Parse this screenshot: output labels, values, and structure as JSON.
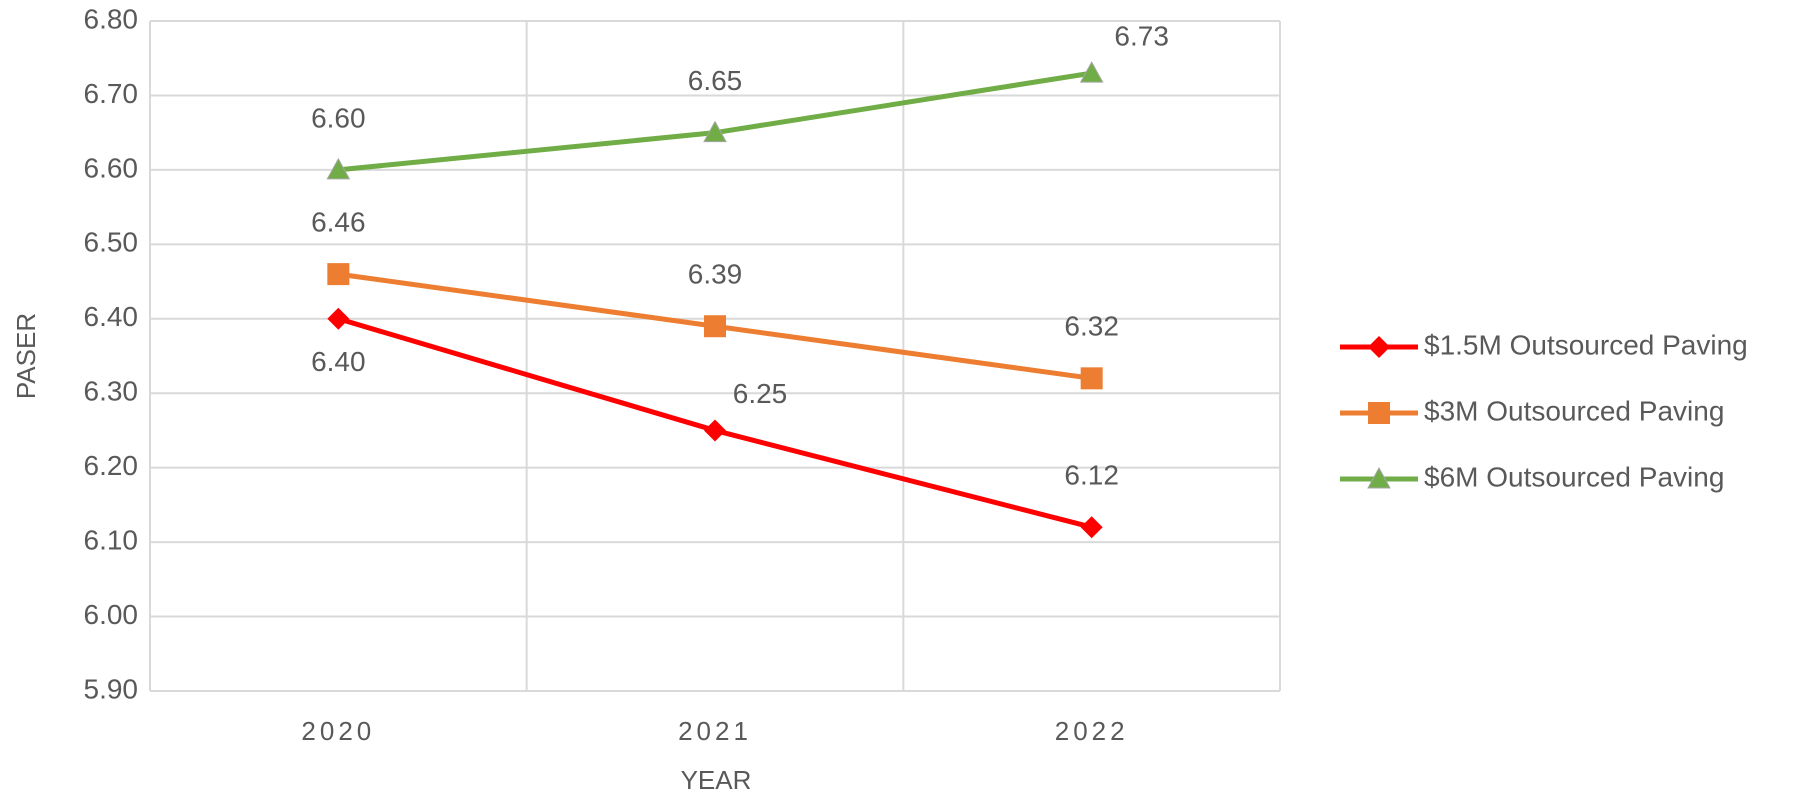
{
  "chart_data": {
    "type": "line",
    "x_label": "YEAR",
    "y_label": "PASER",
    "categories": [
      "2020",
      "2021",
      "2022"
    ],
    "series": [
      {
        "name": "$1.5M Outsourced Paving",
        "color": "#ff0000",
        "marker": "diamond",
        "values": [
          6.4,
          6.25,
          6.12
        ],
        "value_labels": [
          "6.40",
          "6.25",
          "6.12"
        ]
      },
      {
        "name": "$3M Outsourced Paving",
        "color": "#ed7d31",
        "marker": "square",
        "values": [
          6.46,
          6.39,
          6.32
        ],
        "value_labels": [
          "6.46",
          "6.39",
          "6.32"
        ]
      },
      {
        "name": "$6M Outsourced Paving",
        "color": "#70ad47",
        "marker": "triangle",
        "values": [
          6.6,
          6.65,
          6.73
        ],
        "value_labels": [
          "6.60",
          "6.65",
          "6.73"
        ]
      }
    ],
    "ylim": [
      5.9,
      6.8
    ],
    "yticks": [
      {
        "value": 5.9,
        "label": "5.90"
      },
      {
        "value": 6.0,
        "label": "6.00"
      },
      {
        "value": 6.1,
        "label": "6.10"
      },
      {
        "value": 6.2,
        "label": "6.20"
      },
      {
        "value": 6.3,
        "label": "6.30"
      },
      {
        "value": 6.4,
        "label": "6.40"
      },
      {
        "value": 6.5,
        "label": "6.50"
      },
      {
        "value": 6.6,
        "label": "6.60"
      },
      {
        "value": 6.7,
        "label": "6.70"
      },
      {
        "value": 6.8,
        "label": "6.80"
      }
    ],
    "grid": true,
    "legend": "right"
  }
}
